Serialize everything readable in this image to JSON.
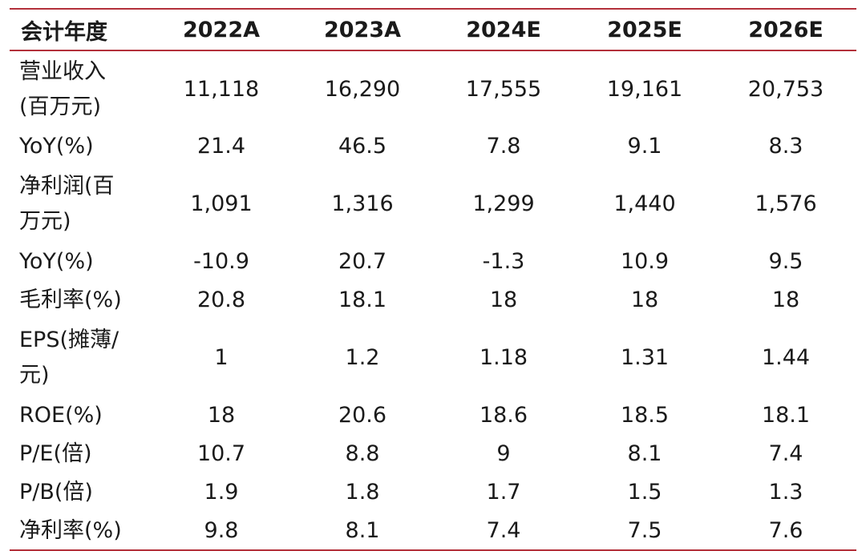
{
  "header": {
    "label": "会计年度",
    "years": [
      "2022A",
      "2023A",
      "2024E",
      "2025E",
      "2026E"
    ]
  },
  "rows": [
    {
      "label_lines": [
        "营业收入",
        "(百万元)"
      ],
      "values": [
        "11,118",
        "16,290",
        "17,555",
        "19,161",
        "20,753"
      ]
    },
    {
      "label_lines": [
        "YoY(%)"
      ],
      "values": [
        "21.4",
        "46.5",
        "7.8",
        "9.1",
        "8.3"
      ]
    },
    {
      "label_lines": [
        "净利润(百",
        "万元)"
      ],
      "values": [
        "1,091",
        "1,316",
        "1,299",
        "1,440",
        "1,576"
      ]
    },
    {
      "label_lines": [
        "YoY(%)"
      ],
      "values": [
        "-10.9",
        "20.7",
        "-1.3",
        "10.9",
        "9.5"
      ]
    },
    {
      "label_lines": [
        "毛利率(%)"
      ],
      "values": [
        "20.8",
        "18.1",
        "18",
        "18",
        "18"
      ]
    },
    {
      "label_lines": [
        "EPS(摊薄/",
        "元)"
      ],
      "values": [
        "1",
        "1.2",
        "1.18",
        "1.31",
        "1.44"
      ]
    },
    {
      "label_lines": [
        "ROE(%)"
      ],
      "values": [
        "18",
        "20.6",
        "18.6",
        "18.5",
        "18.1"
      ]
    },
    {
      "label_lines": [
        "P/E(倍)"
      ],
      "values": [
        "10.7",
        "8.8",
        "9",
        "8.1",
        "7.4"
      ]
    },
    {
      "label_lines": [
        "P/B(倍)"
      ],
      "values": [
        "1.9",
        "1.8",
        "1.7",
        "1.5",
        "1.3"
      ]
    },
    {
      "label_lines": [
        "净利率(%)"
      ],
      "values": [
        "9.8",
        "8.1",
        "7.4",
        "7.5",
        "7.6"
      ]
    }
  ],
  "colors": {
    "rule": "#b3303a",
    "text": "#1a1a1a"
  }
}
